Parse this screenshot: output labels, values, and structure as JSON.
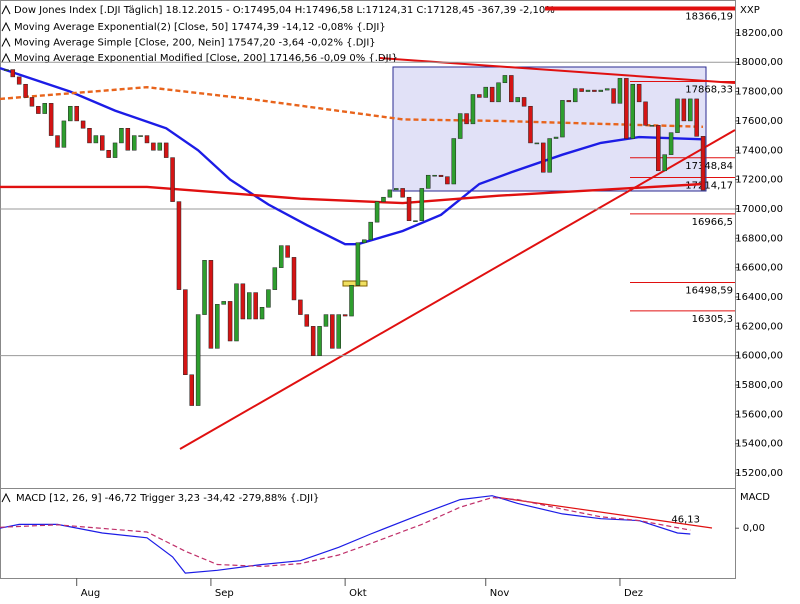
{
  "chart_data": {
    "type": "candlestick",
    "title": "Dow Jones Index [.DJI  Täglich] 18.12.2015 - O:17495,04 H:17496,58 L:17124,31 C:17128,45 -367,39 -2,10%",
    "axis_label": "XXP",
    "up_color": "#2e9e2e",
    "down_color": "#d41414",
    "closes": [
      17950,
      17900,
      17850,
      17760,
      17700,
      17650,
      17720,
      17500,
      17420,
      17600,
      17700,
      17600,
      17550,
      17450,
      17500,
      17400,
      17350,
      17450,
      17550,
      17400,
      17500,
      17500,
      17450,
      17400,
      17450,
      17350,
      17050,
      16450,
      15870,
      15660,
      16280,
      16650,
      16050,
      16350,
      16370,
      16100,
      16490,
      16250,
      16430,
      16250,
      16330,
      16450,
      16600,
      16750,
      16670,
      16380,
      16280,
      16200,
      16000,
      16200,
      16280,
      16050,
      16280,
      16270,
      16480,
      16770,
      16790,
      16910,
      17050,
      17080,
      17130,
      17140,
      17080,
      16920,
      16920,
      17140,
      17230,
      17230,
      17220,
      17170,
      17480,
      17650,
      17580,
      17780,
      17760,
      17830,
      17730,
      17860,
      17910,
      17730,
      17760,
      17700,
      17450,
      17450,
      17250,
      17480,
      17490,
      17740,
      17730,
      17820,
      17800,
      17810,
      17800,
      17810,
      17820,
      17720,
      17890,
      17480,
      17850,
      17730,
      17570,
      17570,
      17260,
      17370,
      17520,
      17750,
      17600,
      17750,
      17495,
      17128.45
    ],
    "xlim": [
      -1,
      114
    ],
    "xticks": [
      {
        "value": 11,
        "label": "Aug"
      },
      {
        "value": 32,
        "label": "Sep"
      },
      {
        "value": 53,
        "label": "Okt"
      },
      {
        "value": 75,
        "label": "Nov"
      },
      {
        "value": 96,
        "label": "Dez"
      }
    ],
    "ylim": [
      15105,
      18390
    ],
    "yticks": [
      {
        "value": 15200,
        "label": "15200,00"
      },
      {
        "value": 15400,
        "label": "15400,00"
      },
      {
        "value": 15600,
        "label": "15600,00"
      },
      {
        "value": 15800,
        "label": "15800,00"
      },
      {
        "value": 16000,
        "label": "16000,00"
      },
      {
        "value": 16200,
        "label": "16200,00"
      },
      {
        "value": 16400,
        "label": "16400,00"
      },
      {
        "value": 16600,
        "label": "16600,00"
      },
      {
        "value": 16800,
        "label": "16800,00"
      },
      {
        "value": 17000,
        "label": "17000,00"
      },
      {
        "value": 17200,
        "label": "17200,00"
      },
      {
        "value": 17400,
        "label": "17400,00"
      },
      {
        "value": 17600,
        "label": "17600,00"
      },
      {
        "value": 17800,
        "label": "17800,00"
      },
      {
        "value": 18000,
        "label": "18000,00"
      },
      {
        "value": 18200,
        "label": "18200,00"
      }
    ],
    "series": [
      {
        "name": "Moving Average Exponential(2) [Close, 50] 17474,39 -14,12 -0,08% {.DJI}",
        "color": "#1c1ce6",
        "dashed": false,
        "x": [
          -1,
          10,
          17,
          25,
          30,
          35,
          41,
          47,
          53,
          55,
          62,
          68,
          74,
          79,
          87,
          93,
          99,
          109
        ],
        "values": [
          17960,
          17800,
          17670,
          17550,
          17400,
          17200,
          17030,
          16890,
          16760,
          16760,
          16850,
          16960,
          17170,
          17250,
          17370,
          17450,
          17490,
          17475
        ]
      },
      {
        "name": "Moving Average Simple [Close, 200, Nein] 17547,20 -3,64 -0,02% {.DJI}",
        "color": "#e8641c",
        "dashed": true,
        "x": [
          -1,
          22,
          38,
          62,
          77,
          109
        ],
        "values": [
          17750,
          17830,
          17750,
          17610,
          17600,
          17560
        ]
      },
      {
        "name": "Moving Average Exponential Modified [Close, 200] 17146,56 -0,09 0% {.DJI}",
        "color": "#e01010",
        "dashed": false,
        "x": [
          -1,
          22,
          46,
          62,
          77,
          109
        ],
        "values": [
          17150,
          17150,
          17070,
          17040,
          17090,
          17170
        ]
      }
    ],
    "levels": [
      {
        "value": 18366.19,
        "label": "18366,19"
      },
      {
        "value": 17868.33,
        "label": "17868,33"
      },
      {
        "value": 17348.84,
        "label": "17348,84"
      },
      {
        "value": 17214.17,
        "label": "17214,17"
      },
      {
        "value": 16966.5,
        "label": "16966,5"
      },
      {
        "value": 16498.59,
        "label": "16498,59"
      },
      {
        "value": 16305.3,
        "label": "16305,3"
      }
    ],
    "macd": {
      "title": "MACD [12, 26, 9] -46,72 Trigger 3,23 -34,42 -279,88% {.DJI}",
      "axis_label": "MACD",
      "ylim": [
        -250,
        200
      ],
      "yticks": [
        {
          "value": 0,
          "label": "0,00"
        }
      ],
      "annotation": {
        "value": 46.13,
        "label": "46,13"
      },
      "series": [
        {
          "color": "#1c1ce6",
          "dashed": false,
          "x": [
            -1,
            2,
            8,
            15,
            22,
            26,
            28,
            33,
            40,
            46,
            52,
            57,
            65,
            71,
            76,
            80,
            87,
            93,
            99,
            105,
            107
          ],
          "values": [
            0,
            20,
            20,
            -25,
            -50,
            -150,
            -235,
            -220,
            -190,
            -170,
            -100,
            -30,
            75,
            150,
            170,
            130,
            75,
            50,
            40,
            -25,
            -30
          ]
        },
        {
          "color": "#c0306a",
          "dashed": true,
          "x": [
            -1,
            8,
            22,
            28,
            33,
            40,
            46,
            52,
            57,
            65,
            71,
            76,
            80,
            87,
            93,
            99,
            107
          ],
          "values": [
            5,
            18,
            -20,
            -120,
            -190,
            -200,
            -185,
            -140,
            -80,
            20,
            110,
            160,
            150,
            100,
            60,
            40,
            -10
          ]
        }
      ]
    }
  }
}
